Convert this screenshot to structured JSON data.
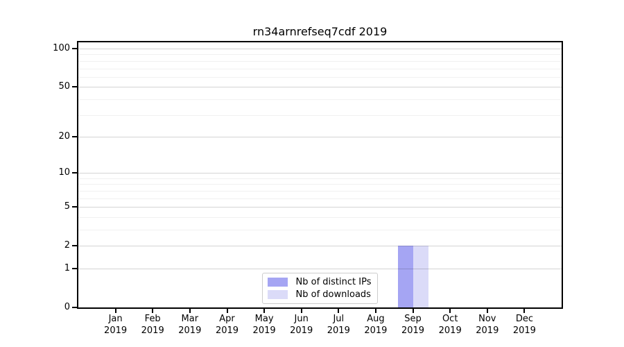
{
  "title": "rn34arnrefseq7cdf 2019",
  "colors": {
    "distinct_ips_bar": "#a5a5f3",
    "downloads_bar": "#dbdbf8",
    "axis": "#000000",
    "legend_border": "#cccccc"
  },
  "legend": {
    "items": [
      {
        "label": "Nb of distinct IPs"
      },
      {
        "label": "Nb of downloads"
      }
    ]
  },
  "chart_data": {
    "type": "bar",
    "title": "rn34arnrefseq7cdf 2019",
    "months": [
      "Jan",
      "Feb",
      "Mar",
      "Apr",
      "May",
      "Jun",
      "Jul",
      "Aug",
      "Sep",
      "Oct",
      "Nov",
      "Dec"
    ],
    "year": "2019",
    "categories": [
      "Jan 2019",
      "Feb 2019",
      "Mar 2019",
      "Apr 2019",
      "May 2019",
      "Jun 2019",
      "Jul 2019",
      "Aug 2019",
      "Sep 2019",
      "Oct 2019",
      "Nov 2019",
      "Dec 2019"
    ],
    "series": [
      {
        "name": "Nb of distinct IPs",
        "color": "#a5a5f3",
        "values": [
          0,
          0,
          0,
          0,
          0,
          0,
          0,
          0,
          2,
          0,
          0,
          0
        ]
      },
      {
        "name": "Nb of downloads",
        "color": "#dbdbf8",
        "values": [
          0,
          0,
          0,
          0,
          0,
          0,
          0,
          0,
          2,
          0,
          0,
          0
        ]
      }
    ],
    "y_scale": "log1p",
    "y_ticks": [
      0,
      1,
      2,
      5,
      10,
      20,
      50,
      100
    ],
    "y_minor_ticks": [
      3,
      4,
      6,
      7,
      8,
      9,
      30,
      40,
      60,
      70,
      80,
      90
    ],
    "ylim": [
      0,
      110
    ],
    "grid": true,
    "legend_position": "lower center"
  }
}
